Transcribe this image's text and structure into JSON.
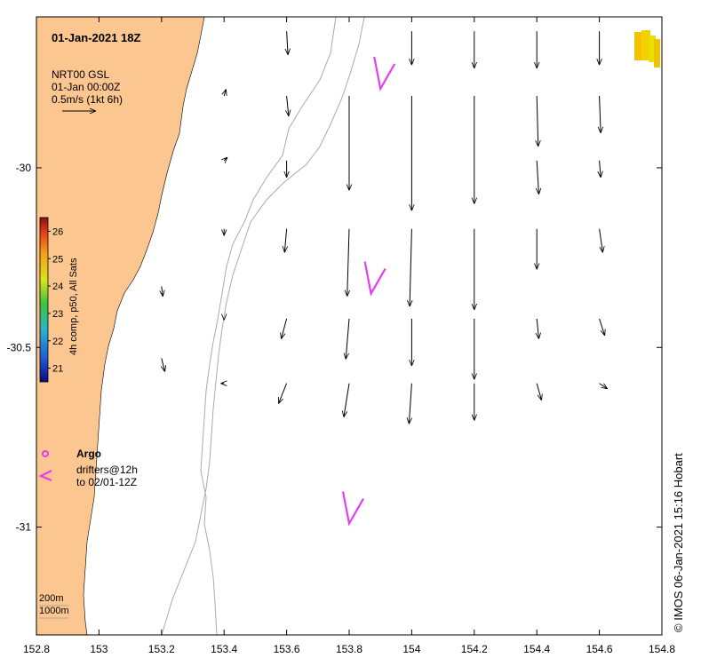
{
  "title": "01-Jan-2021 18Z",
  "product": {
    "line1": "NRT00 GSL",
    "line2": "01-Jan 00:00Z",
    "line3": "0.5m/s (1kt 6h)"
  },
  "colorbar": {
    "label": "4h comp, p50, All Sats",
    "ticks": [
      "26",
      "25",
      "24",
      "23",
      "22",
      "21"
    ],
    "min": 20.5,
    "max": 26.5
  },
  "legend": {
    "argo_label": "Argo",
    "drifters_line1": "drifters@12h",
    "drifters_line2": "to 02/01-12Z"
  },
  "depth_labels": [
    "200m",
    "1000m"
  ],
  "credit": "© IMOS 06-Jan-2021 15:16 Hobart",
  "colors": {
    "land": "#fbc690",
    "drifter": "#e83cf0",
    "contour": "#aaaaaa",
    "vector": "#000000",
    "sst_patch": "#f2c200"
  },
  "chart_data": {
    "type": "vector-field",
    "x_axis": {
      "ticks": [
        "152.8",
        "153",
        "153.2",
        "153.4",
        "153.6",
        "153.8",
        "154",
        "154.2",
        "154.4",
        "154.6",
        "154.8"
      ],
      "range": [
        152.8,
        154.8
      ]
    },
    "y_axis": {
      "ticks": [
        "-30",
        "-30.5",
        "-31"
      ],
      "range": [
        -31.3,
        -29.58
      ]
    },
    "vectors": [
      {
        "lon": 153.6,
        "lat": -29.62,
        "u": 0.02,
        "v": -0.35
      },
      {
        "lon": 154.0,
        "lat": -29.62,
        "u": 0.0,
        "v": -0.5
      },
      {
        "lon": 154.4,
        "lat": -29.62,
        "u": 0.0,
        "v": -0.55
      },
      {
        "lon": 154.6,
        "lat": -29.62,
        "u": 0.0,
        "v": -0.5
      },
      {
        "lon": 154.2,
        "lat": -29.62,
        "u": 0.0,
        "v": -0.55
      },
      {
        "lon": 153.4,
        "lat": -29.8,
        "u": 0.03,
        "v": 0.1
      },
      {
        "lon": 153.6,
        "lat": -29.8,
        "u": 0.03,
        "v": -0.3
      },
      {
        "lon": 153.8,
        "lat": -29.8,
        "u": 0.0,
        "v": -1.4
      },
      {
        "lon": 154.0,
        "lat": -29.8,
        "u": 0.0,
        "v": -1.7
      },
      {
        "lon": 154.2,
        "lat": -29.8,
        "u": 0.0,
        "v": -1.6
      },
      {
        "lon": 154.4,
        "lat": -29.8,
        "u": 0.02,
        "v": -0.75
      },
      {
        "lon": 154.6,
        "lat": -29.8,
        "u": 0.02,
        "v": -0.55
      },
      {
        "lon": 153.4,
        "lat": -29.98,
        "u": 0.05,
        "v": 0.05
      },
      {
        "lon": 153.6,
        "lat": -29.98,
        "u": 0.0,
        "v": -0.25
      },
      {
        "lon": 154.4,
        "lat": -29.98,
        "u": 0.03,
        "v": -0.5
      },
      {
        "lon": 154.6,
        "lat": -29.98,
        "u": 0.02,
        "v": -0.25
      },
      {
        "lon": 153.4,
        "lat": -30.17,
        "u": 0.0,
        "v": -0.1
      },
      {
        "lon": 153.6,
        "lat": -30.17,
        "u": -0.03,
        "v": -0.35
      },
      {
        "lon": 153.8,
        "lat": -30.17,
        "u": -0.03,
        "v": -1.0
      },
      {
        "lon": 154.0,
        "lat": -30.17,
        "u": -0.03,
        "v": -1.15
      },
      {
        "lon": 154.2,
        "lat": -30.17,
        "u": 0.0,
        "v": -1.2
      },
      {
        "lon": 154.4,
        "lat": -30.17,
        "u": 0.0,
        "v": -0.6
      },
      {
        "lon": 154.6,
        "lat": -30.17,
        "u": 0.05,
        "v": -0.35
      },
      {
        "lon": 153.2,
        "lat": -30.33,
        "u": 0.02,
        "v": -0.15
      },
      {
        "lon": 153.4,
        "lat": -30.42,
        "u": 0.0,
        "v": -0.02
      },
      {
        "lon": 153.6,
        "lat": -30.42,
        "u": -0.08,
        "v": -0.3
      },
      {
        "lon": 153.8,
        "lat": -30.42,
        "u": -0.05,
        "v": -0.6
      },
      {
        "lon": 154.0,
        "lat": -30.42,
        "u": 0.0,
        "v": -0.7
      },
      {
        "lon": 154.2,
        "lat": -30.42,
        "u": 0.0,
        "v": -0.9
      },
      {
        "lon": 154.4,
        "lat": -30.42,
        "u": 0.03,
        "v": -0.3
      },
      {
        "lon": 154.6,
        "lat": -30.42,
        "u": 0.08,
        "v": -0.25
      },
      {
        "lon": 153.2,
        "lat": -30.53,
        "u": 0.05,
        "v": -0.2
      },
      {
        "lon": 153.4,
        "lat": -30.6,
        "u": -0.05,
        "v": 0.0
      },
      {
        "lon": 153.6,
        "lat": -30.6,
        "u": -0.12,
        "v": -0.3
      },
      {
        "lon": 153.8,
        "lat": -30.6,
        "u": -0.08,
        "v": -0.5
      },
      {
        "lon": 154.0,
        "lat": -30.6,
        "u": -0.04,
        "v": -0.6
      },
      {
        "lon": 154.2,
        "lat": -30.6,
        "u": 0.0,
        "v": -0.55
      },
      {
        "lon": 154.4,
        "lat": -30.6,
        "u": 0.07,
        "v": -0.25
      },
      {
        "lon": 154.6,
        "lat": -30.6,
        "u": 0.12,
        "v": -0.08
      }
    ],
    "drifters": [
      {
        "lon": 153.9,
        "lat": -29.78
      },
      {
        "lon": 153.87,
        "lat": -30.35
      },
      {
        "lon": 153.8,
        "lat": -30.99
      }
    ],
    "argo_floats": []
  }
}
